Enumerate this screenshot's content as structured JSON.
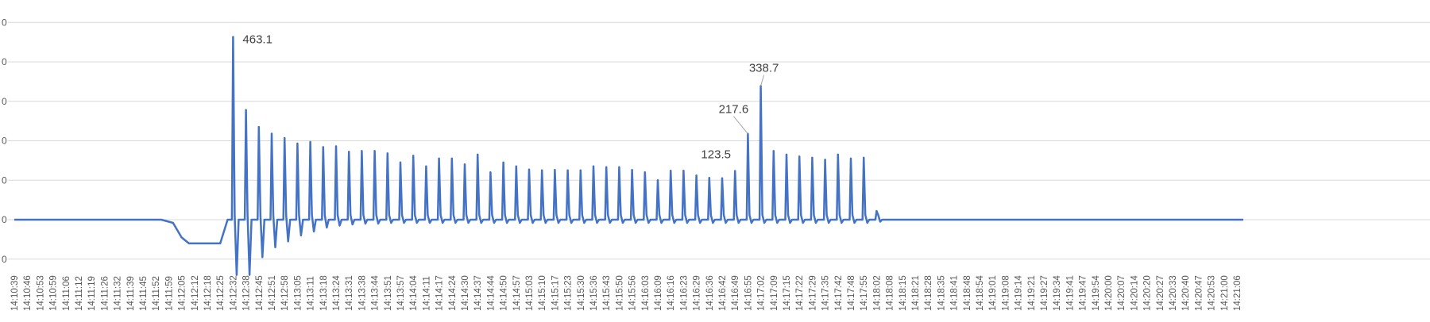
{
  "chart_data": {
    "type": "line",
    "title": "",
    "xlabel": "",
    "ylabel": "",
    "ylim": [
      -100,
      500
    ],
    "y_ticks": [
      -100,
      0,
      100,
      200,
      300,
      400,
      500
    ],
    "y_tick_labels": [
      "0",
      "0",
      "0",
      "0",
      "0",
      "0",
      "0"
    ],
    "grid": true,
    "legend": "none",
    "line_color": "#4472C4",
    "x_tick_labels": [
      "14:10:39",
      "14:10:46",
      "14:10:53",
      "14:10:59",
      "14:11:06",
      "14:11:12",
      "14:11:19",
      "14:11:26",
      "14:11:32",
      "14:11:39",
      "14:11:45",
      "14:11:52",
      "14:11:59",
      "14:12:05",
      "14:12:12",
      "14:12:18",
      "14:12:25",
      "14:12:32",
      "14:12:38",
      "14:12:45",
      "14:12:51",
      "14:12:58",
      "14:13:05",
      "14:13:11",
      "14:13:18",
      "14:13:24",
      "14:13:31",
      "14:13:38",
      "14:13:44",
      "14:13:51",
      "14:13:57",
      "14:14:04",
      "14:14:11",
      "14:14:17",
      "14:14:24",
      "14:14:30",
      "14:14:37",
      "14:14:44",
      "14:14:50",
      "14:14:57",
      "14:15:03",
      "14:15:10",
      "14:15:17",
      "14:15:23",
      "14:15:30",
      "14:15:36",
      "14:15:43",
      "14:15:50",
      "14:15:56",
      "14:16:03",
      "14:16:09",
      "14:16:16",
      "14:16:23",
      "14:16:29",
      "14:16:36",
      "14:16:42",
      "14:16:49",
      "14:16:55",
      "14:17:02",
      "14:17:09",
      "14:17:15",
      "14:17:22",
      "14:17:29",
      "14:17:35",
      "14:17:42",
      "14:17:48",
      "14:17:55",
      "14:18:02",
      "14:18:08",
      "14:18:15",
      "14:18:21",
      "14:18:28",
      "14:18:35",
      "14:18:41",
      "14:18:48",
      "14:18:54",
      "14:19:01",
      "14:19:08",
      "14:19:14",
      "14:19:21",
      "14:19:27",
      "14:19:34",
      "14:19:41",
      "14:19:47",
      "14:19:54",
      "14:20:00",
      "14:20:07",
      "14:20:14",
      "14:20:20",
      "14:20:27",
      "14:20:33",
      "14:20:40",
      "14:20:47",
      "14:20:53",
      "14:21:00",
      "14:21:06"
    ],
    "baseline": 0,
    "pre_spike_dip": [
      {
        "at": "14:12:01",
        "value": -8
      },
      {
        "at": "14:12:05",
        "value": -45
      },
      {
        "at": "14:12:09",
        "value": -60
      },
      {
        "at": "14:12:25",
        "value": -60
      }
    ],
    "spikes": [
      {
        "at": "14:12:32",
        "peak": 463.1,
        "trough": -140
      },
      {
        "at": "14:12:38",
        "peak": 278,
        "trough": -140
      },
      {
        "at": "14:12:45",
        "peak": 235,
        "trough": -95
      },
      {
        "at": "14:12:51",
        "peak": 218,
        "trough": -70
      },
      {
        "at": "14:12:58",
        "peak": 207,
        "trough": -55
      },
      {
        "at": "14:13:05",
        "peak": 193,
        "trough": -40
      },
      {
        "at": "14:13:11",
        "peak": 197,
        "trough": -30
      },
      {
        "at": "14:13:18",
        "peak": 184,
        "trough": -20
      },
      {
        "at": "14:13:24",
        "peak": 186,
        "trough": -15
      },
      {
        "at": "14:13:31",
        "peak": 172,
        "trough": -12
      },
      {
        "at": "14:13:38",
        "peak": 174,
        "trough": -10
      },
      {
        "at": "14:13:44",
        "peak": 174,
        "trough": -10
      },
      {
        "at": "14:13:51",
        "peak": 168,
        "trough": -8
      },
      {
        "at": "14:13:57",
        "peak": 145,
        "trough": -8
      },
      {
        "at": "14:14:04",
        "peak": 162,
        "trough": -8
      },
      {
        "at": "14:14:11",
        "peak": 135,
        "trough": -8
      },
      {
        "at": "14:14:17",
        "peak": 155,
        "trough": -8
      },
      {
        "at": "14:14:24",
        "peak": 155,
        "trough": -8
      },
      {
        "at": "14:14:30",
        "peak": 140,
        "trough": -8
      },
      {
        "at": "14:14:37",
        "peak": 165,
        "trough": -8
      },
      {
        "at": "14:14:44",
        "peak": 120,
        "trough": -8
      },
      {
        "at": "14:14:50",
        "peak": 145,
        "trough": -8
      },
      {
        "at": "14:14:57",
        "peak": 135,
        "trough": -8
      },
      {
        "at": "14:15:03",
        "peak": 127,
        "trough": -8
      },
      {
        "at": "14:15:10",
        "peak": 125,
        "trough": -8
      },
      {
        "at": "14:15:17",
        "peak": 126,
        "trough": -8
      },
      {
        "at": "14:15:23",
        "peak": 125,
        "trough": -8
      },
      {
        "at": "14:15:30",
        "peak": 125,
        "trough": -8
      },
      {
        "at": "14:15:36",
        "peak": 135,
        "trough": -8
      },
      {
        "at": "14:15:43",
        "peak": 133,
        "trough": -8
      },
      {
        "at": "14:15:50",
        "peak": 133,
        "trough": -8
      },
      {
        "at": "14:15:56",
        "peak": 126,
        "trough": -8
      },
      {
        "at": "14:16:03",
        "peak": 120,
        "trough": -8
      },
      {
        "at": "14:16:09",
        "peak": 100,
        "trough": -8
      },
      {
        "at": "14:16:16",
        "peak": 124,
        "trough": -8
      },
      {
        "at": "14:16:23",
        "peak": 124,
        "trough": -8
      },
      {
        "at": "14:16:29",
        "peak": 112,
        "trough": -8
      },
      {
        "at": "14:16:36",
        "peak": 106,
        "trough": -8
      },
      {
        "at": "14:16:42",
        "peak": 105,
        "trough": -8
      },
      {
        "at": "14:16:49",
        "peak": 123.5,
        "trough": -8
      },
      {
        "at": "14:16:55",
        "peak": 217.6,
        "trough": -8
      },
      {
        "at": "14:17:02",
        "peak": 338.7,
        "trough": -8
      },
      {
        "at": "14:17:09",
        "peak": 174,
        "trough": -8
      },
      {
        "at": "14:17:15",
        "peak": 165,
        "trough": -8
      },
      {
        "at": "14:17:22",
        "peak": 160,
        "trough": -8
      },
      {
        "at": "14:17:29",
        "peak": 157,
        "trough": -8
      },
      {
        "at": "14:17:35",
        "peak": 152,
        "trough": -8
      },
      {
        "at": "14:17:42",
        "peak": 165,
        "trough": -8
      },
      {
        "at": "14:17:48",
        "peak": 155,
        "trough": -8
      },
      {
        "at": "14:17:55",
        "peak": 157,
        "trough": -8
      },
      {
        "at": "14:18:02",
        "peak": 22,
        "trough": -5
      }
    ],
    "annotations": [
      {
        "text": "463.1",
        "at": "14:12:32",
        "value": 463.1
      },
      {
        "text": "338.7",
        "at": "14:17:02",
        "value": 338.7
      },
      {
        "text": "217.6",
        "at": "14:16:55",
        "value": 217.6
      },
      {
        "text": "123.5",
        "at": "14:16:49",
        "value": 123.5
      }
    ]
  }
}
